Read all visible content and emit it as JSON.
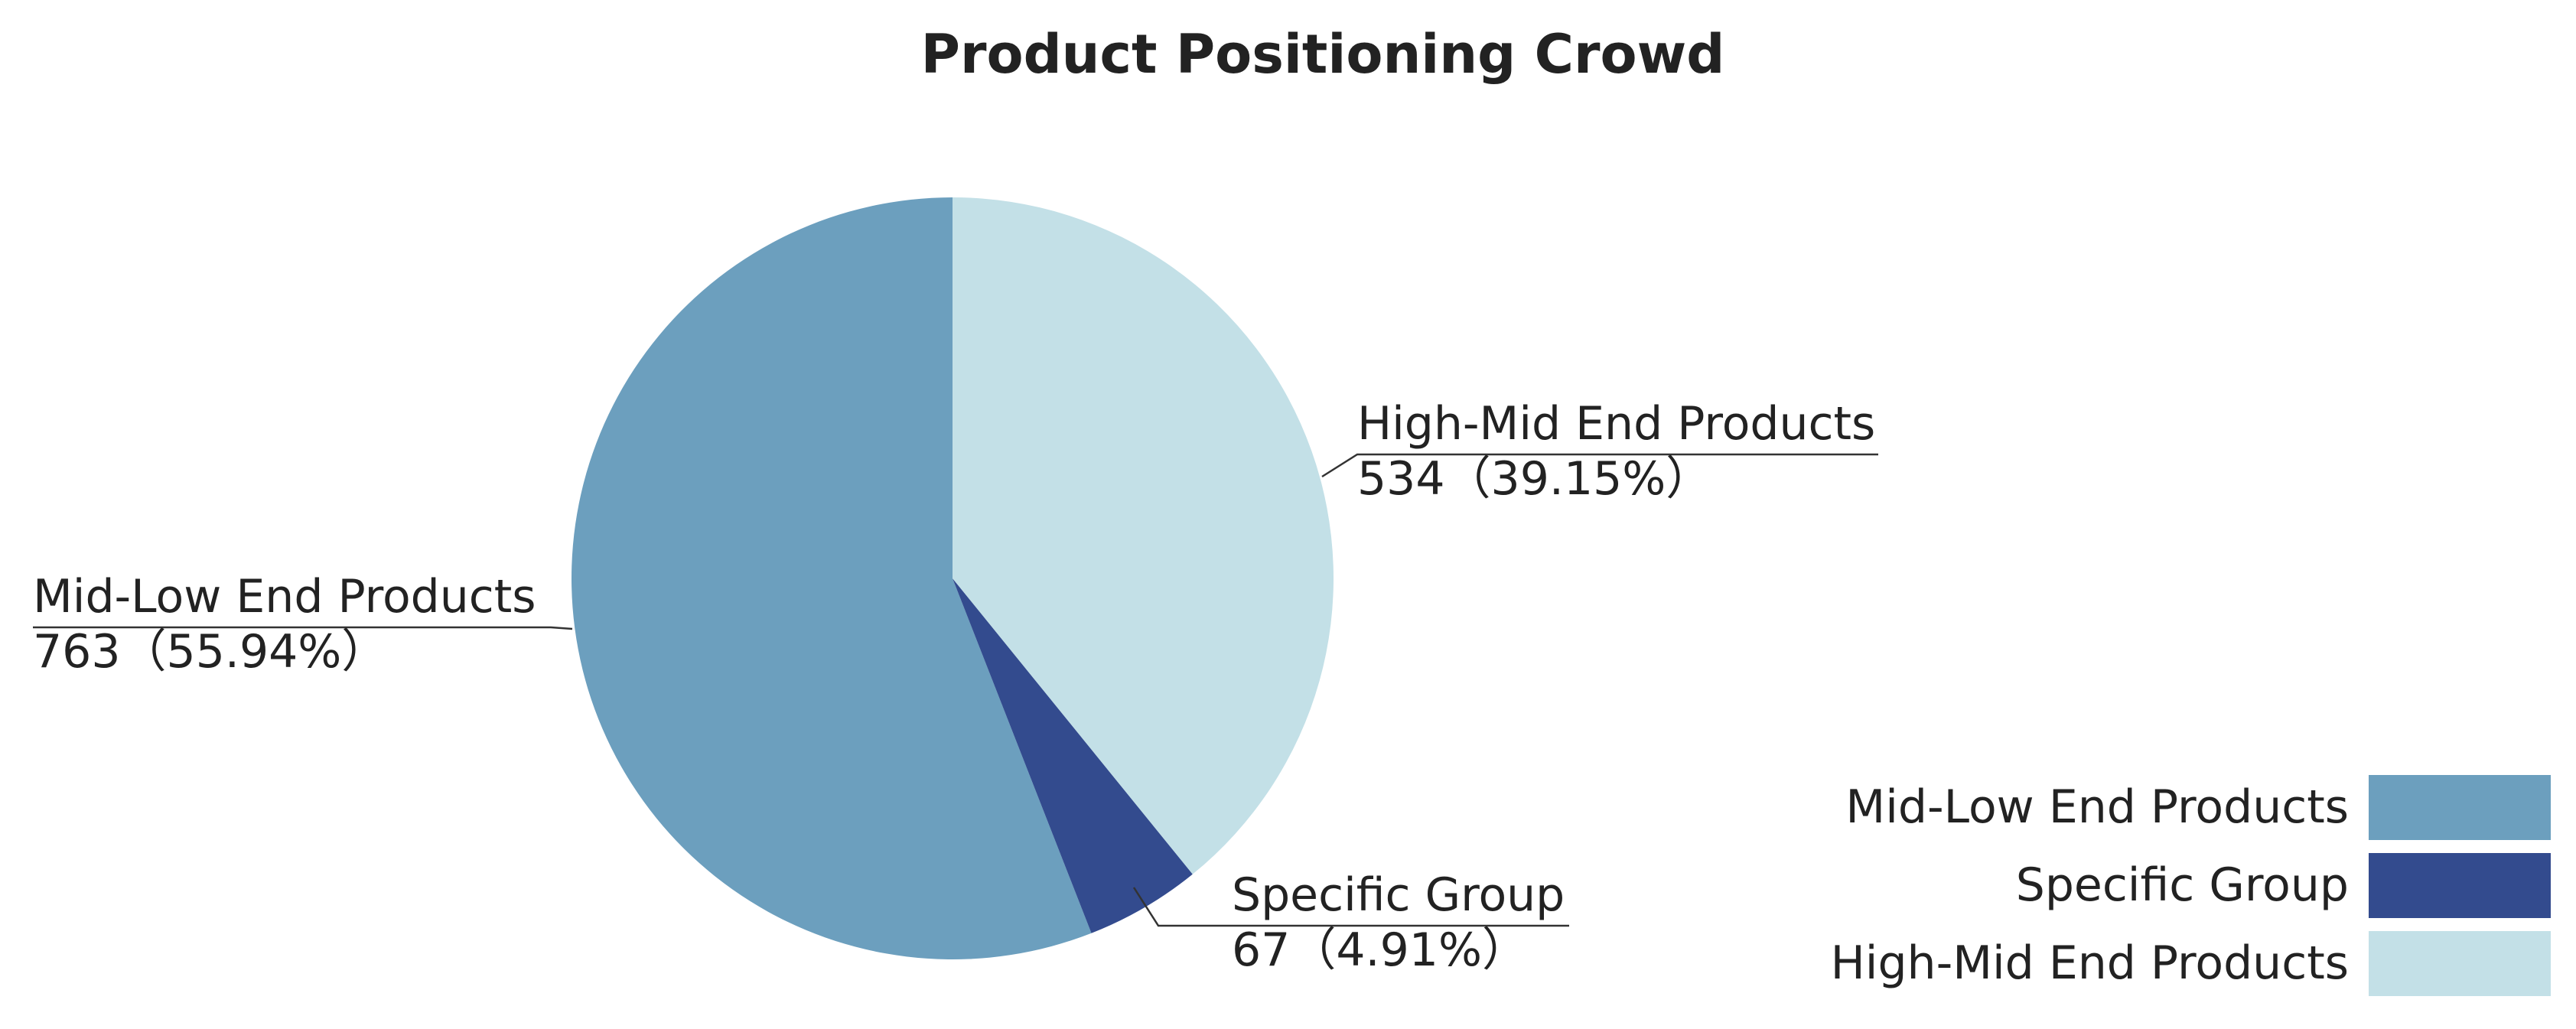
{
  "chart_data": {
    "type": "pie",
    "title": "Product Positioning Crowd",
    "categories": [
      "Mid-Low End Products",
      "Specific Group",
      "High-Mid End Products"
    ],
    "values": [
      763,
      67,
      534
    ],
    "value_labels": [
      "763（55.94%）",
      "67（4.91%）",
      "534（39.15%）"
    ],
    "colors": [
      "#6c9fbe",
      "#334b8e",
      "#c3e0e7"
    ],
    "legend": "bottom-right"
  }
}
